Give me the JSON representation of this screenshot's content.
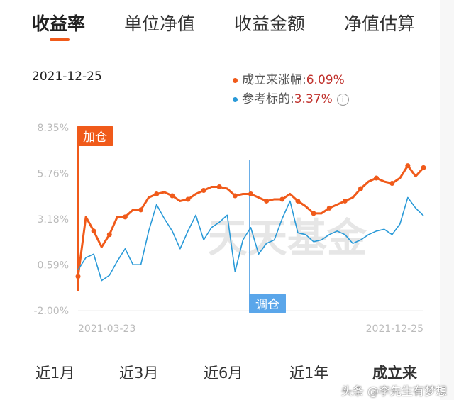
{
  "tabs": [
    "收益率",
    "单位净值",
    "收益金额",
    "净值估算"
  ],
  "active_tab": 0,
  "date": "2021-12-25",
  "legend": [
    {
      "label": "成立来涨幅:",
      "value": "6.09%",
      "color": "#f05a1a"
    },
    {
      "label": "参考标的:",
      "value": "3.37%",
      "color": "#2a9ad8"
    }
  ],
  "info_icon": "i",
  "markers": {
    "add": "加仓",
    "adjust": "调仓"
  },
  "chart_data": {
    "type": "line",
    "x_range": [
      "2021-03-23",
      "2021-12-25"
    ],
    "x_tick_labels": [
      "2021-03-23",
      "2021-12-25"
    ],
    "y_tick_labels": [
      "8.35%",
      "5.76%",
      "3.18%",
      "0.59%",
      "-2.00%"
    ],
    "ylim": [
      -2.0,
      8.35
    ],
    "grid": false,
    "watermark": "天天基金",
    "series": [
      {
        "name": "成立来涨幅",
        "color": "#f05a1a",
        "values": [
          -0.07,
          3.3,
          2.5,
          1.6,
          2.3,
          3.3,
          3.3,
          3.7,
          3.7,
          4.4,
          4.6,
          4.7,
          4.5,
          4.2,
          4.3,
          4.6,
          4.8,
          5.0,
          5.0,
          4.9,
          4.5,
          4.6,
          4.6,
          4.4,
          4.2,
          4.3,
          4.3,
          4.6,
          4.2,
          3.9,
          3.5,
          3.5,
          3.8,
          4.0,
          4.2,
          4.4,
          4.9,
          5.3,
          5.5,
          5.3,
          5.2,
          5.5,
          6.2,
          5.6,
          6.09
        ]
      },
      {
        "name": "参考标的",
        "color": "#2a9ad8",
        "values": [
          0.3,
          1.0,
          1.2,
          -0.3,
          0.0,
          0.8,
          1.5,
          0.6,
          0.6,
          2.5,
          4.0,
          3.2,
          2.5,
          1.5,
          2.5,
          3.4,
          2.0,
          2.7,
          3.0,
          3.4,
          0.2,
          2.0,
          2.7,
          1.2,
          1.8,
          2.0,
          3.2,
          4.2,
          2.4,
          2.3,
          1.9,
          2.0,
          2.3,
          2.5,
          2.3,
          1.8,
          2.0,
          2.3,
          2.5,
          2.6,
          2.3,
          2.9,
          4.4,
          3.8,
          3.37
        ]
      }
    ]
  },
  "periods": [
    "近1月",
    "近3月",
    "近6月",
    "近1年",
    "成立来"
  ],
  "active_period": 4,
  "watermark_text": "头条 @李先生有梦想"
}
